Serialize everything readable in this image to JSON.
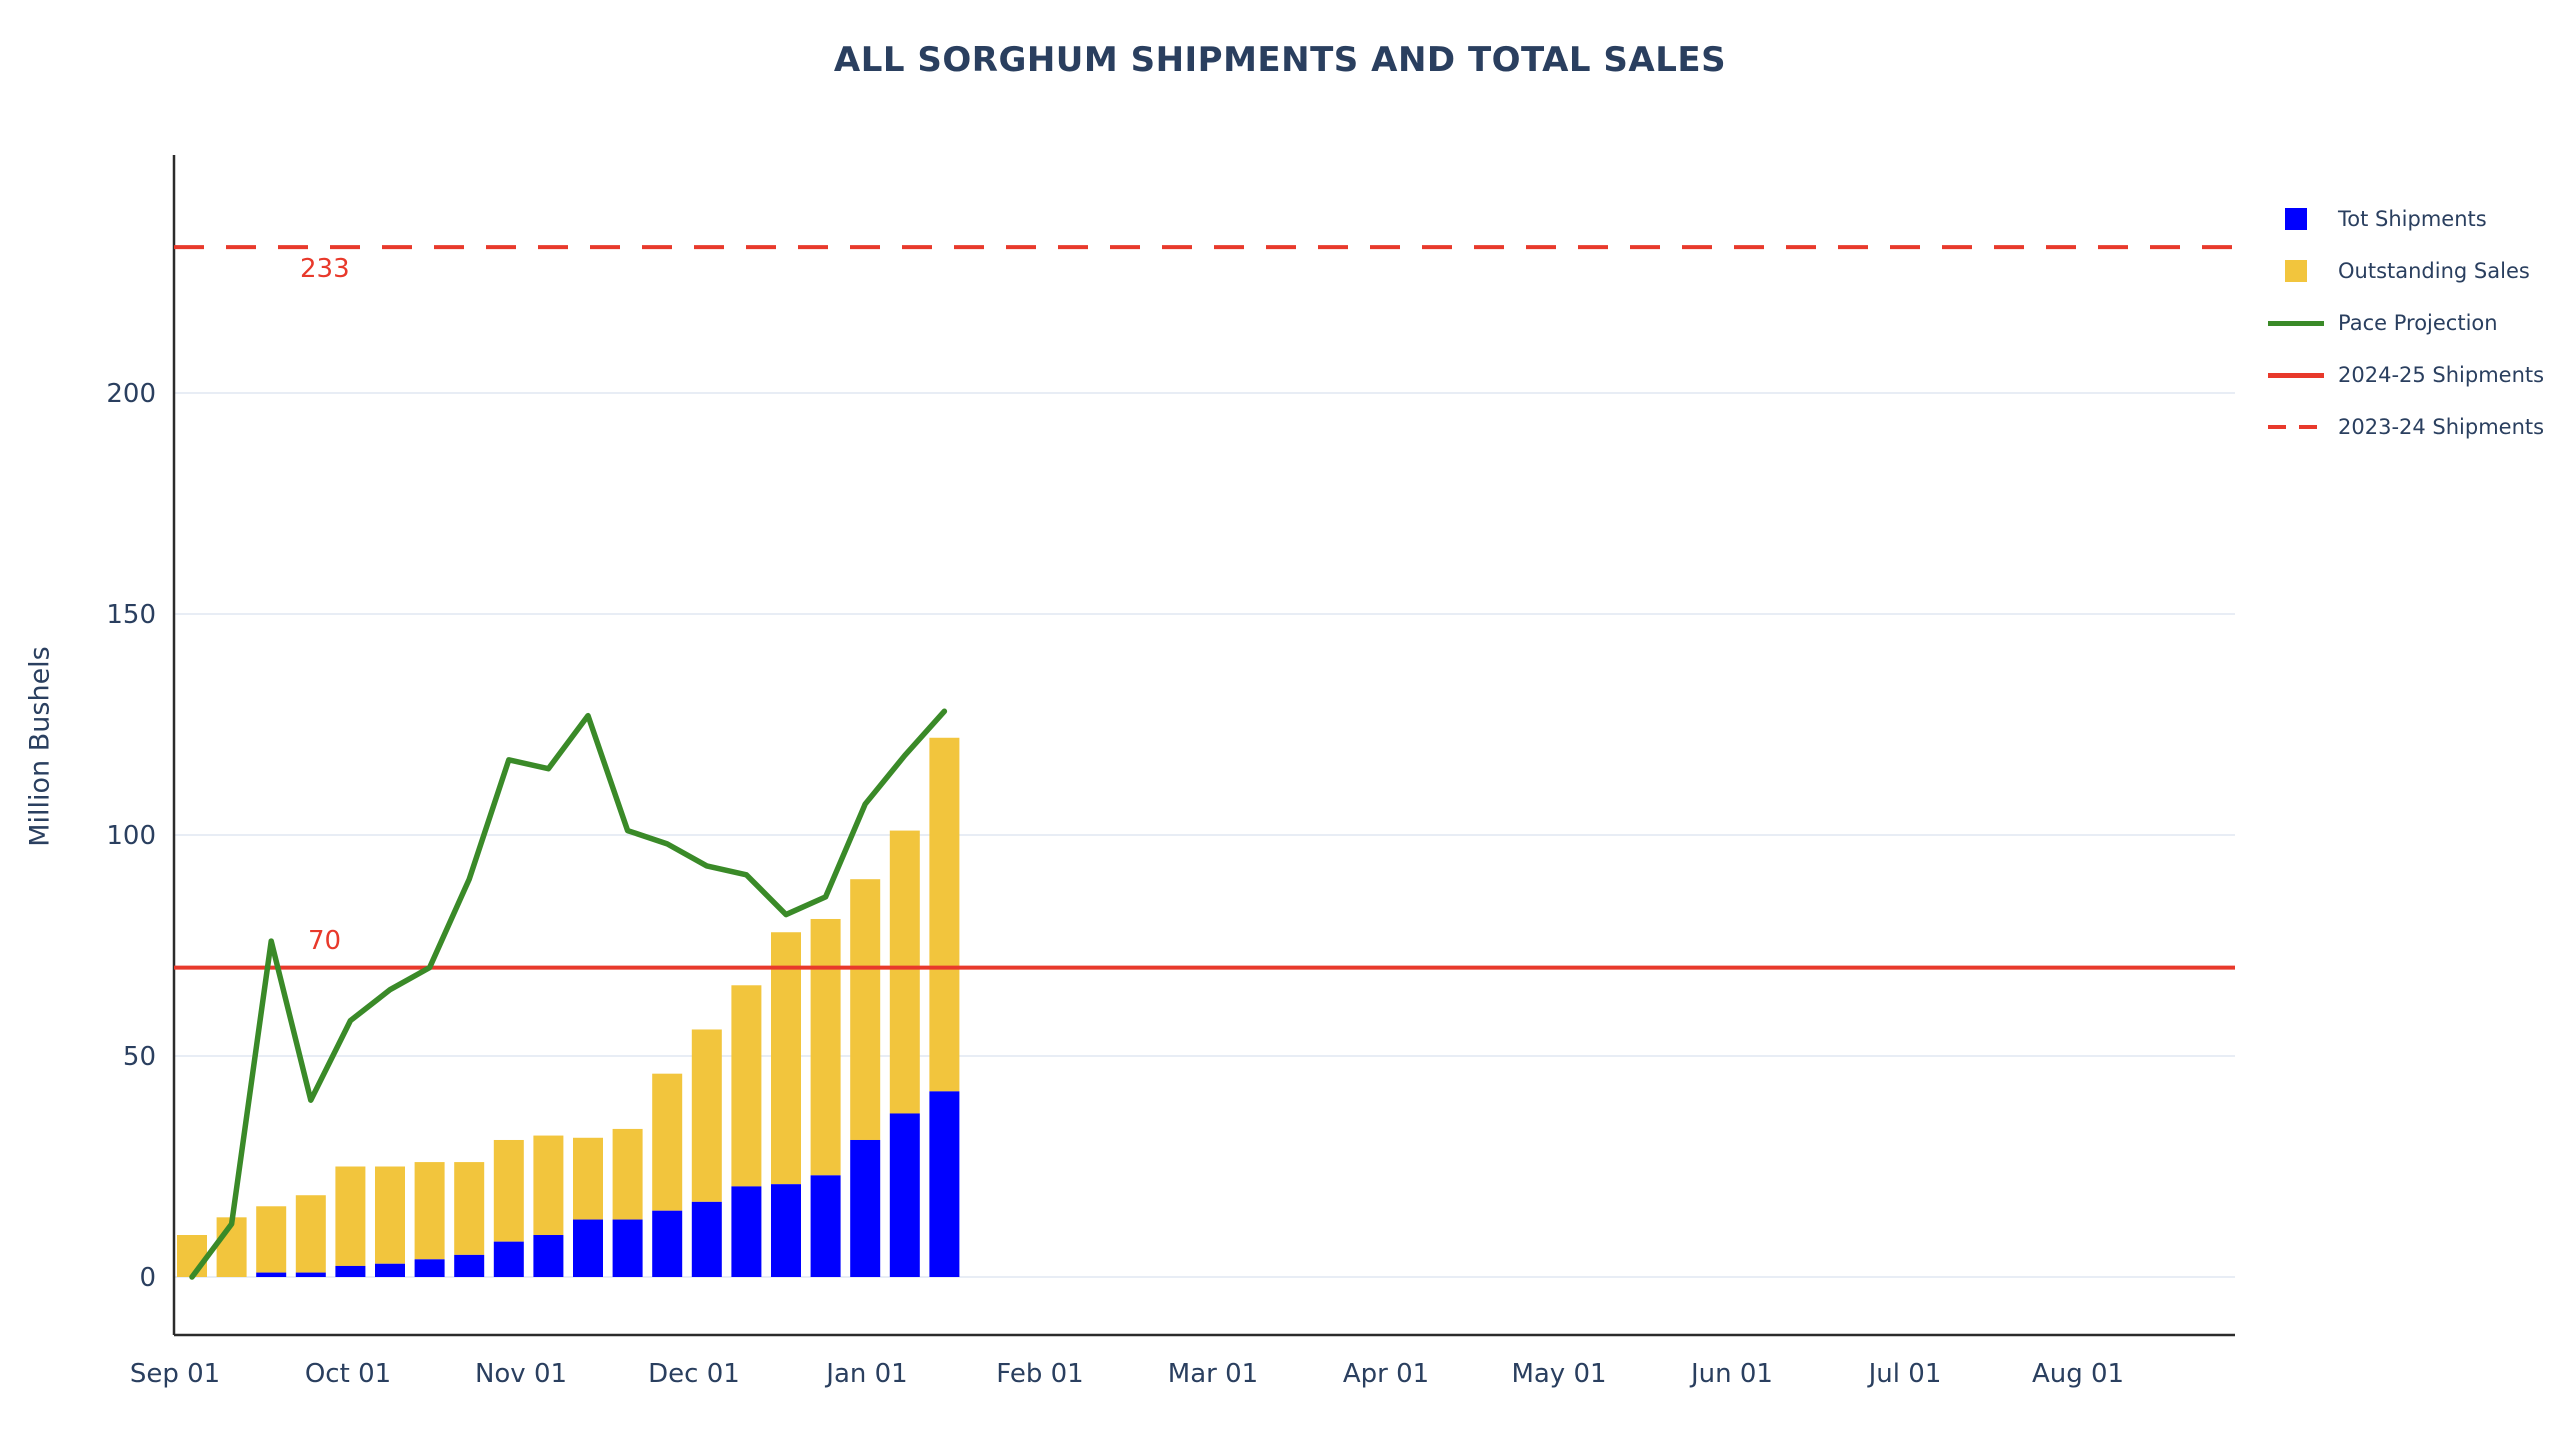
{
  "title": "ALL SORGHUM SHIPMENTS AND TOTAL SALES",
  "colors": {
    "shipments_blue": "#0000FF",
    "outstanding_yellow": "#F2C53D",
    "pace_green": "#3A8A28",
    "ref_red": "#E8392B",
    "text_navy": "#2A3F5F",
    "gridline": "#E8EDF5",
    "axis_line": "#2B2B2B"
  },
  "legend": {
    "items": [
      {
        "label": "Tot Shipments",
        "marker": "square",
        "color_key": "shipments_blue"
      },
      {
        "label": "Outstanding Sales",
        "marker": "square",
        "color_key": "outstanding_yellow"
      },
      {
        "label": "Pace Projection",
        "marker": "line",
        "color_key": "pace_green"
      },
      {
        "label": "2024-25 Shipments",
        "marker": "line",
        "color_key": "ref_red"
      },
      {
        "label": "2023-24 Shipments",
        "marker": "dash",
        "color_key": "ref_red"
      }
    ]
  },
  "chart_data": {
    "type": "combo",
    "title": "ALL SORGHUM SHIPMENTS AND TOTAL SALES",
    "xlabel": "",
    "ylabel": "Million Bushels",
    "ylim": [
      -13,
      254
    ],
    "grid": "horizontal",
    "legend_position": "right",
    "x_tick_labels": [
      "Sep 01",
      "Oct 01",
      "Nov 01",
      "Dec 01",
      "Jan 01",
      "Feb 01",
      "Mar 01",
      "Apr 01",
      "May 01",
      "Jun 01",
      "Jul 01",
      "Aug 01"
    ],
    "y_ticks": [
      0,
      50,
      100,
      150,
      200
    ],
    "weekly_bar_count": 20,
    "series": [
      {
        "name": "Tot Shipments",
        "type": "bar-stacked",
        "color_key": "shipments_blue",
        "values": [
          0,
          0,
          1,
          1,
          2.5,
          3,
          4,
          5,
          8,
          9.5,
          13,
          13,
          15,
          17,
          20.5,
          21,
          23,
          31,
          37,
          42
        ]
      },
      {
        "name": "Outstanding Sales",
        "type": "bar-stacked",
        "color_key": "outstanding_yellow",
        "values": [
          9.5,
          13.5,
          15,
          17.5,
          22.5,
          22,
          22,
          21,
          23,
          22.5,
          18.5,
          20.5,
          31,
          39,
          45.5,
          57,
          58,
          59,
          64,
          80
        ]
      },
      {
        "name": "Pace Projection",
        "type": "line",
        "color_key": "pace_green",
        "values": [
          0,
          12,
          76,
          40,
          58,
          65,
          70,
          90,
          117,
          115,
          127,
          101,
          98,
          93,
          91,
          82,
          86,
          107,
          118,
          128
        ]
      },
      {
        "name": "2024-25 Shipments",
        "type": "hline",
        "color_key": "ref_red",
        "value": 70,
        "label": "70"
      },
      {
        "name": "2023-24 Shipments",
        "type": "hline-dashed",
        "color_key": "ref_red",
        "value": 233,
        "label": "233"
      }
    ]
  }
}
